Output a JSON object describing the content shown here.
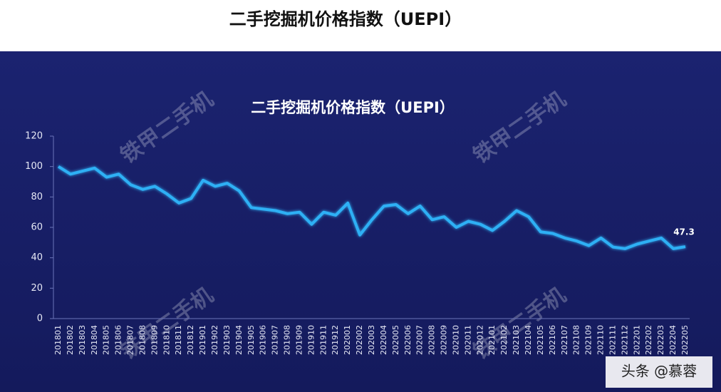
{
  "page_title": "二手挖掘机价格指数（UEPI）",
  "footer": "头条 @慕蓉",
  "watermark": "铁甲二手机",
  "chart_data": {
    "type": "line",
    "title": "二手挖掘机价格指数（UEPI）",
    "categories": [
      "201801",
      "201802",
      "201803",
      "201804",
      "201805",
      "201806",
      "201807",
      "201808",
      "201809",
      "201810",
      "201811",
      "201812",
      "201901",
      "201902",
      "201903",
      "201904",
      "201905",
      "201906",
      "201907",
      "201908",
      "201909",
      "201910",
      "201911",
      "201912",
      "202001",
      "202002",
      "202003",
      "202004",
      "202005",
      "202006",
      "202007",
      "202008",
      "202009",
      "202010",
      "202011",
      "202012",
      "202101",
      "202102",
      "202103",
      "202104",
      "202105",
      "202106",
      "202107",
      "202108",
      "202109",
      "202110",
      "202111",
      "202112",
      "202201",
      "202202",
      "202203",
      "202204",
      "202205"
    ],
    "values": [
      100,
      95,
      97,
      99,
      93,
      95,
      88,
      85,
      87,
      82,
      76,
      79,
      91,
      87,
      89,
      84,
      73,
      72,
      71,
      69,
      70,
      62,
      70,
      68,
      76,
      55,
      65,
      74,
      75,
      69,
      74,
      65,
      67,
      60,
      64,
      62,
      58,
      64,
      71,
      67,
      57,
      56,
      53,
      51,
      48,
      53,
      47,
      46,
      49,
      51,
      53,
      46,
      47.3
    ],
    "color": "#2fb0f5",
    "ylim": [
      0,
      120
    ],
    "yticks": [
      0,
      20,
      40,
      60,
      80,
      100,
      120
    ]
  }
}
